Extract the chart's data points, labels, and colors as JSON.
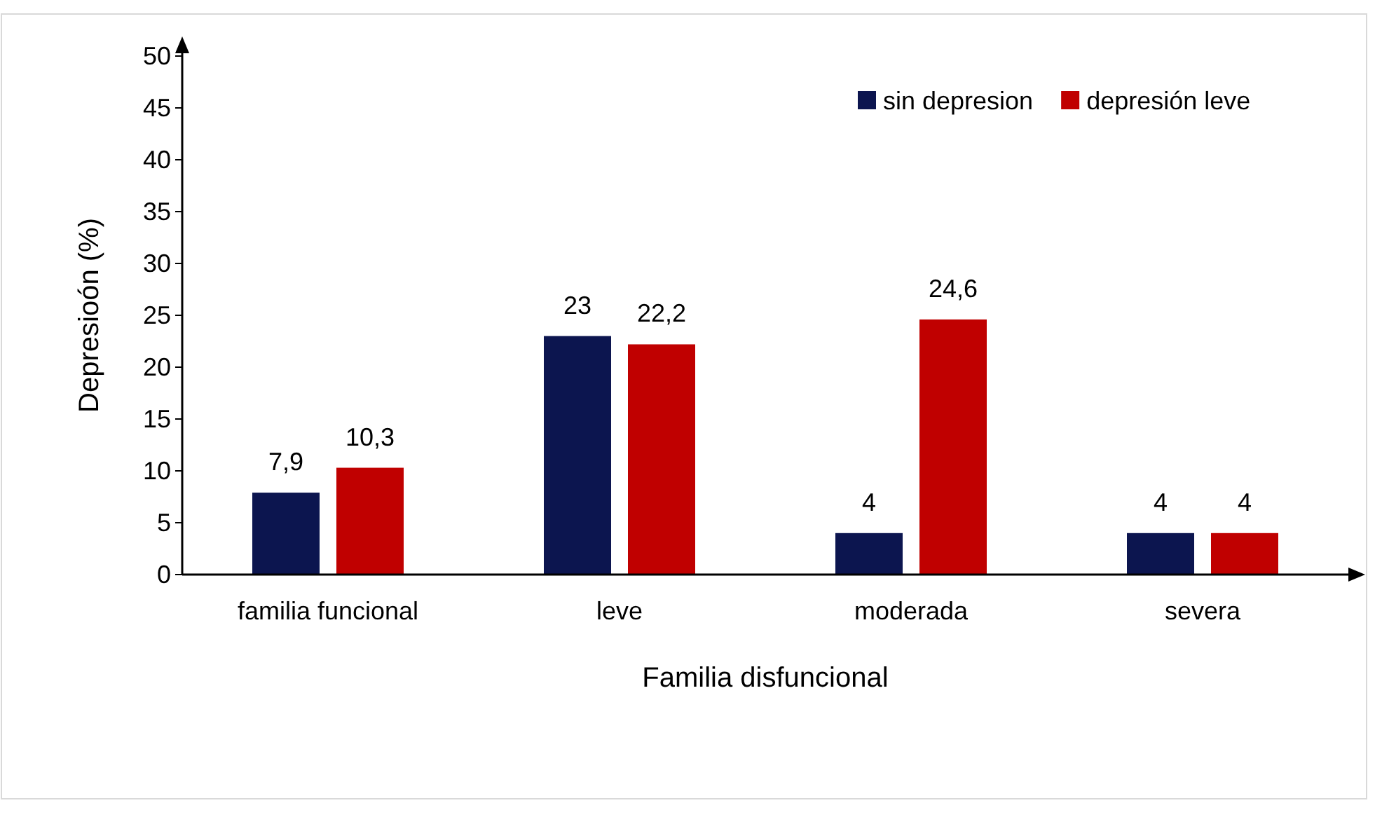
{
  "chart_data": {
    "type": "bar",
    "xlabel": "Familia disfuncional",
    "ylabel": "Depresioón (%)",
    "categories": [
      "familia funcional",
      "leve",
      "moderada",
      "severa"
    ],
    "series": [
      {
        "name": "sin depresion",
        "color": "#0c154f",
        "values": [
          7.9,
          23,
          4,
          4
        ],
        "value_labels": [
          "7,9",
          "23",
          "4",
          "4"
        ]
      },
      {
        "name": "depresión leve",
        "color": "#c00000",
        "values": [
          10.3,
          22.2,
          24.6,
          4
        ],
        "value_labels": [
          "10,3",
          "22,2",
          "24,6",
          "4"
        ]
      }
    ],
    "ylim": [
      0,
      50
    ],
    "yticks": [
      0,
      5,
      10,
      15,
      20,
      25,
      30,
      35,
      40,
      45,
      50
    ],
    "grid": false,
    "legend": "top right"
  }
}
